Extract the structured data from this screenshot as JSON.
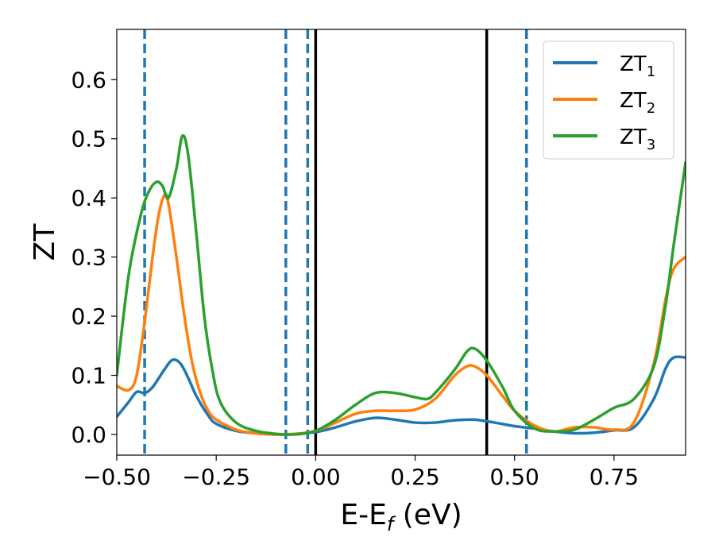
{
  "chart_data": {
    "type": "line",
    "xlabel": "E-E_f (eV)",
    "xlabel_parts": {
      "main": "E-E",
      "subscript": "f",
      "tail": " (eV)"
    },
    "ylabel": "ZT",
    "xlim": [
      -0.5,
      0.93
    ],
    "ylim": [
      -0.035,
      0.685
    ],
    "xticks": [
      -0.5,
      -0.25,
      0.0,
      0.25,
      0.5,
      0.75
    ],
    "xtick_labels": [
      "−0.50",
      "−0.25",
      "0.00",
      "0.25",
      "0.50",
      "0.75"
    ],
    "yticks": [
      0.0,
      0.1,
      0.2,
      0.3,
      0.4,
      0.5,
      0.6
    ],
    "ytick_labels": [
      "0.0",
      "0.1",
      "0.2",
      "0.3",
      "0.4",
      "0.5",
      "0.6"
    ],
    "grid": false,
    "legend_position": "top-right",
    "series": [
      {
        "name": "ZT_1",
        "label_main": "ZT",
        "label_sub": "1",
        "color": "#1f77b4",
        "x": [
          -0.5,
          -0.47,
          -0.45,
          -0.43,
          -0.41,
          -0.38,
          -0.36,
          -0.34,
          -0.32,
          -0.3,
          -0.27,
          -0.25,
          -0.2,
          -0.15,
          -0.1,
          -0.05,
          0.0,
          0.05,
          0.1,
          0.15,
          0.2,
          0.25,
          0.3,
          0.35,
          0.4,
          0.45,
          0.5,
          0.55,
          0.6,
          0.65,
          0.7,
          0.75,
          0.8,
          0.85,
          0.88,
          0.9,
          0.93
        ],
        "y": [
          0.03,
          0.055,
          0.072,
          0.07,
          0.08,
          0.11,
          0.126,
          0.12,
          0.095,
          0.065,
          0.032,
          0.018,
          0.006,
          0.002,
          0.0,
          0.001,
          0.004,
          0.012,
          0.022,
          0.028,
          0.025,
          0.02,
          0.02,
          0.024,
          0.025,
          0.02,
          0.014,
          0.01,
          0.005,
          0.002,
          0.003,
          0.007,
          0.012,
          0.06,
          0.112,
          0.13,
          0.13
        ]
      },
      {
        "name": "ZT_2",
        "label_main": "ZT",
        "label_sub": "2",
        "color": "#ff7f0e",
        "x": [
          -0.5,
          -0.47,
          -0.45,
          -0.43,
          -0.41,
          -0.395,
          -0.38,
          -0.37,
          -0.35,
          -0.33,
          -0.31,
          -0.29,
          -0.27,
          -0.25,
          -0.2,
          -0.15,
          -0.1,
          -0.05,
          0.0,
          0.05,
          0.1,
          0.15,
          0.2,
          0.25,
          0.3,
          0.35,
          0.38,
          0.4,
          0.43,
          0.47,
          0.5,
          0.55,
          0.6,
          0.65,
          0.7,
          0.75,
          0.8,
          0.85,
          0.88,
          0.9,
          0.93
        ],
        "y": [
          0.082,
          0.075,
          0.1,
          0.19,
          0.3,
          0.37,
          0.405,
          0.39,
          0.3,
          0.2,
          0.12,
          0.07,
          0.04,
          0.025,
          0.008,
          0.002,
          0.0,
          0.001,
          0.006,
          0.02,
          0.035,
          0.04,
          0.04,
          0.042,
          0.06,
          0.1,
          0.115,
          0.115,
          0.1,
          0.065,
          0.04,
          0.015,
          0.005,
          0.012,
          0.012,
          0.008,
          0.02,
          0.12,
          0.23,
          0.28,
          0.3
        ]
      },
      {
        "name": "ZT_3",
        "label_main": "ZT",
        "label_sub": "3",
        "color": "#2ca02c",
        "x": [
          -0.5,
          -0.47,
          -0.44,
          -0.42,
          -0.4,
          -0.385,
          -0.37,
          -0.35,
          -0.335,
          -0.32,
          -0.3,
          -0.28,
          -0.26,
          -0.24,
          -0.2,
          -0.15,
          -0.1,
          -0.05,
          0.0,
          0.05,
          0.1,
          0.15,
          0.2,
          0.25,
          0.28,
          0.3,
          0.35,
          0.38,
          0.4,
          0.43,
          0.47,
          0.5,
          0.55,
          0.6,
          0.65,
          0.7,
          0.75,
          0.8,
          0.85,
          0.88,
          0.9,
          0.93
        ],
        "y": [
          0.1,
          0.27,
          0.37,
          0.41,
          0.427,
          0.42,
          0.4,
          0.45,
          0.505,
          0.47,
          0.34,
          0.2,
          0.11,
          0.055,
          0.02,
          0.006,
          0.001,
          0.0,
          0.006,
          0.025,
          0.05,
          0.07,
          0.07,
          0.063,
          0.06,
          0.07,
          0.11,
          0.14,
          0.145,
          0.125,
          0.08,
          0.04,
          0.01,
          0.005,
          0.008,
          0.025,
          0.045,
          0.06,
          0.115,
          0.22,
          0.32,
          0.46
        ]
      }
    ],
    "vlines": [
      {
        "x": -0.43,
        "style": "dashed",
        "color": "#1f77b4"
      },
      {
        "x": -0.075,
        "style": "dashed",
        "color": "#1f77b4"
      },
      {
        "x": -0.02,
        "style": "dashed",
        "color": "#1f77b4"
      },
      {
        "x": 0.0,
        "style": "solid",
        "color": "#000000"
      },
      {
        "x": 0.43,
        "style": "solid",
        "color": "#000000"
      },
      {
        "x": 0.53,
        "style": "dashed",
        "color": "#1f77b4"
      }
    ]
  }
}
